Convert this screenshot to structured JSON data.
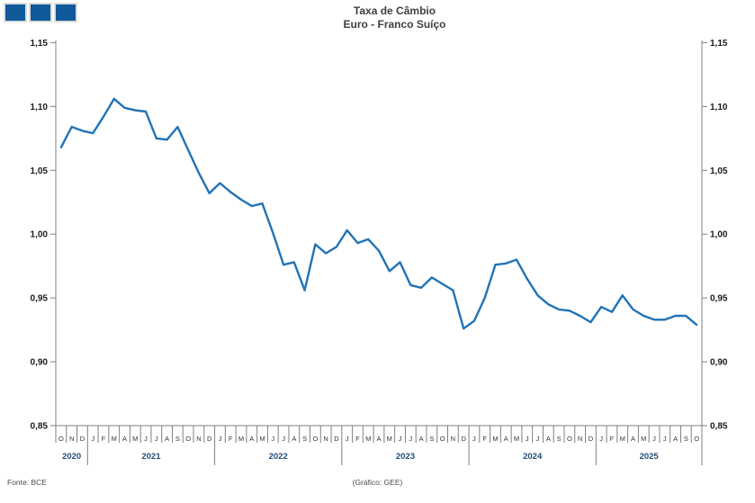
{
  "logo": {
    "square_count": 3,
    "square_color": "#10599B",
    "border_color": "#DCDCDC"
  },
  "title": {
    "line1": "Taxa de Câmbio",
    "line2": "Euro - Franco Suíço"
  },
  "footer": {
    "source": "Fonte: BCE",
    "credit": "(Gráfico: GEE)"
  },
  "chart_data": {
    "type": "line",
    "title": "Taxa de Câmbio Euro - Franco Suíço",
    "frequency": "monthly",
    "x_start": "2020-10",
    "x_end": "2025-10",
    "month_letters": [
      "O",
      "N",
      "D",
      "J",
      "F",
      "M",
      "A",
      "M",
      "J",
      "J",
      "A",
      "S",
      "O",
      "N",
      "D",
      "J",
      "F",
      "M",
      "A",
      "M",
      "J",
      "J",
      "A",
      "S",
      "O",
      "N",
      "D",
      "J",
      "F",
      "M",
      "A",
      "M",
      "J",
      "J",
      "A",
      "S",
      "O",
      "N",
      "D",
      "J",
      "F",
      "M",
      "A",
      "M",
      "J",
      "J",
      "A",
      "S",
      "O",
      "N",
      "D",
      "J",
      "F",
      "M",
      "A",
      "M",
      "J",
      "J",
      "A",
      "S",
      "O"
    ],
    "years": [
      {
        "label": "2020",
        "months": 3
      },
      {
        "label": "2021",
        "months": 12
      },
      {
        "label": "2022",
        "months": 12
      },
      {
        "label": "2023",
        "months": 12
      },
      {
        "label": "2024",
        "months": 12
      },
      {
        "label": "2025",
        "months": 10
      }
    ],
    "values": [
      1.068,
      1.084,
      1.081,
      1.079,
      1.092,
      1.106,
      1.099,
      1.097,
      1.096,
      1.075,
      1.074,
      1.084,
      1.066,
      1.048,
      1.032,
      1.04,
      1.033,
      1.027,
      1.022,
      1.024,
      1.001,
      0.976,
      0.978,
      0.956,
      0.992,
      0.985,
      0.99,
      1.003,
      0.993,
      0.996,
      0.987,
      0.971,
      0.978,
      0.96,
      0.958,
      0.966,
      0.961,
      0.956,
      0.926,
      0.932,
      0.95,
      0.976,
      0.977,
      0.98,
      0.965,
      0.952,
      0.945,
      0.941,
      0.94,
      0.936,
      0.931,
      0.943,
      0.939,
      0.952,
      0.941,
      0.936,
      0.933,
      0.933,
      0.936,
      0.936,
      0.929
    ],
    "ylim": [
      0.85,
      1.15
    ],
    "yticks": [
      {
        "v": 1.15,
        "label": "1,15"
      },
      {
        "v": 1.1,
        "label": "1,10"
      },
      {
        "v": 1.05,
        "label": "1,05"
      },
      {
        "v": 1.0,
        "label": "1,00"
      },
      {
        "v": 0.95,
        "label": "0,95"
      },
      {
        "v": 0.9,
        "label": "0,90"
      },
      {
        "v": 0.85,
        "label": "0,85"
      }
    ],
    "grid": false,
    "legend": "none",
    "line_color": "#2173B6",
    "axis_color": "#808080"
  }
}
